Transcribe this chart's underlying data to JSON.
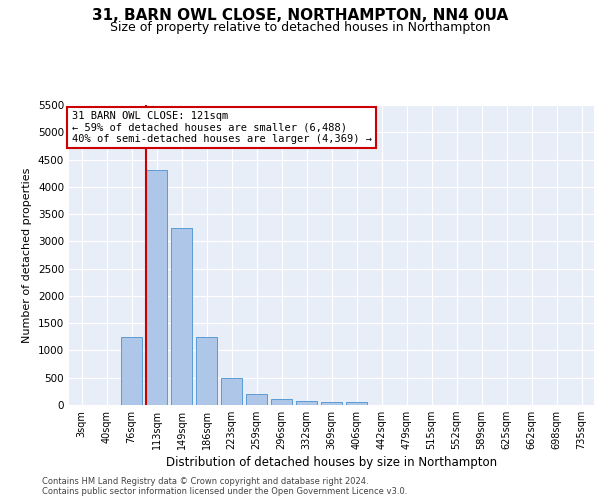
{
  "title": "31, BARN OWL CLOSE, NORTHAMPTON, NN4 0UA",
  "subtitle": "Size of property relative to detached houses in Northampton",
  "xlabel": "Distribution of detached houses by size in Northampton",
  "ylabel": "Number of detached properties",
  "categories": [
    "3sqm",
    "40sqm",
    "76sqm",
    "113sqm",
    "149sqm",
    "186sqm",
    "223sqm",
    "259sqm",
    "296sqm",
    "332sqm",
    "369sqm",
    "406sqm",
    "442sqm",
    "479sqm",
    "515sqm",
    "552sqm",
    "589sqm",
    "625sqm",
    "662sqm",
    "698sqm",
    "735sqm"
  ],
  "values": [
    0,
    0,
    1250,
    4300,
    3250,
    1250,
    500,
    200,
    105,
    75,
    50,
    50,
    0,
    0,
    0,
    0,
    0,
    0,
    0,
    0,
    0
  ],
  "bar_color": "#aec6e8",
  "bar_edge_color": "#5a9bd5",
  "vline_color": "#cc0000",
  "annotation_text": "31 BARN OWL CLOSE: 121sqm\n← 59% of detached houses are smaller (6,488)\n40% of semi-detached houses are larger (4,369) →",
  "annotation_box_color": "#ffffff",
  "annotation_box_edge_color": "#cc0000",
  "footer1": "Contains HM Land Registry data © Crown copyright and database right 2024.",
  "footer2": "Contains public sector information licensed under the Open Government Licence v3.0.",
  "ylim": [
    0,
    5500
  ],
  "yticks": [
    0,
    500,
    1000,
    1500,
    2000,
    2500,
    3000,
    3500,
    4000,
    4500,
    5000,
    5500
  ],
  "background_color": "#e8eef8",
  "fig_background": "#ffffff",
  "title_fontsize": 11,
  "subtitle_fontsize": 9
}
